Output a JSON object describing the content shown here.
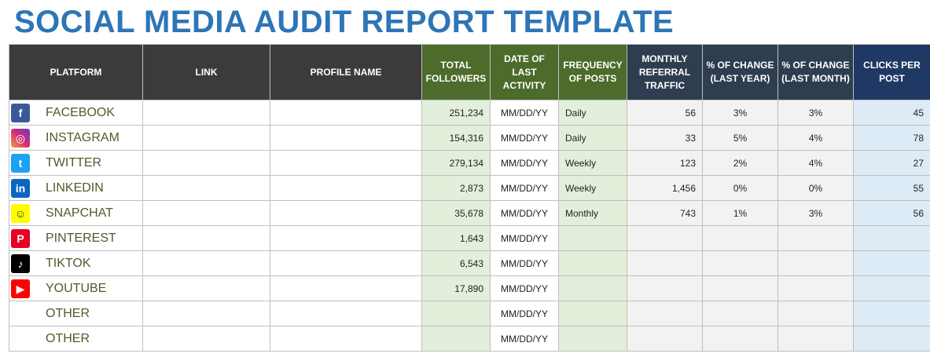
{
  "header": {
    "title": "SOCIAL MEDIA AUDIT REPORT TEMPLATE"
  },
  "table": {
    "columns": [
      "PLATFORM",
      "LINK",
      "PROFILE NAME",
      "TOTAL FOLLOWERS",
      "DATE OF LAST ACTIVITY",
      "FREQUENCY OF POSTS",
      "MONTHLY REFERRAL TRAFFIC",
      "% OF CHANGE (LAST YEAR)",
      "% OF CHANGE (LAST MONTH)",
      "CLICKS PER POST"
    ],
    "rows": [
      {
        "platform": "FACEBOOK",
        "total_followers": "251,234",
        "date": "MM/DD/YY",
        "frequency": "Daily",
        "monthly_referral_traffic": "56",
        "change_last_year": "3%",
        "change_last_month": "3%",
        "clicks_per_post": "45"
      },
      {
        "platform": "INSTAGRAM",
        "total_followers": "154,316",
        "date": "MM/DD/YY",
        "frequency": "Daily",
        "monthly_referral_traffic": "33",
        "change_last_year": "5%",
        "change_last_month": "4%",
        "clicks_per_post": "78"
      },
      {
        "platform": "TWITTER",
        "total_followers": "279,134",
        "date": "MM/DD/YY",
        "frequency": "Weekly",
        "monthly_referral_traffic": "123",
        "change_last_year": "2%",
        "change_last_month": "4%",
        "clicks_per_post": "27"
      },
      {
        "platform": "LINKEDIN",
        "total_followers": "2,873",
        "date": "MM/DD/YY",
        "frequency": "Weekly",
        "monthly_referral_traffic": "1,456",
        "change_last_year": "0%",
        "change_last_month": "0%",
        "clicks_per_post": "55"
      },
      {
        "platform": "SNAPCHAT",
        "total_followers": "35,678",
        "date": "MM/DD/YY",
        "frequency": "Monthly",
        "monthly_referral_traffic": "743",
        "change_last_year": "1%",
        "change_last_month": "3%",
        "clicks_per_post": "56"
      },
      {
        "platform": "PINTEREST",
        "total_followers": "1,643",
        "date": "MM/DD/YY"
      },
      {
        "platform": "TIKTOK",
        "total_followers": "6,543",
        "date": "MM/DD/YY"
      },
      {
        "platform": "YOUTUBE",
        "total_followers": "17,890",
        "date": "MM/DD/YY"
      },
      {
        "platform": "OTHER",
        "date": "MM/DD/YY"
      },
      {
        "platform": "OTHER",
        "date": "MM/DD/YY"
      }
    ]
  }
}
